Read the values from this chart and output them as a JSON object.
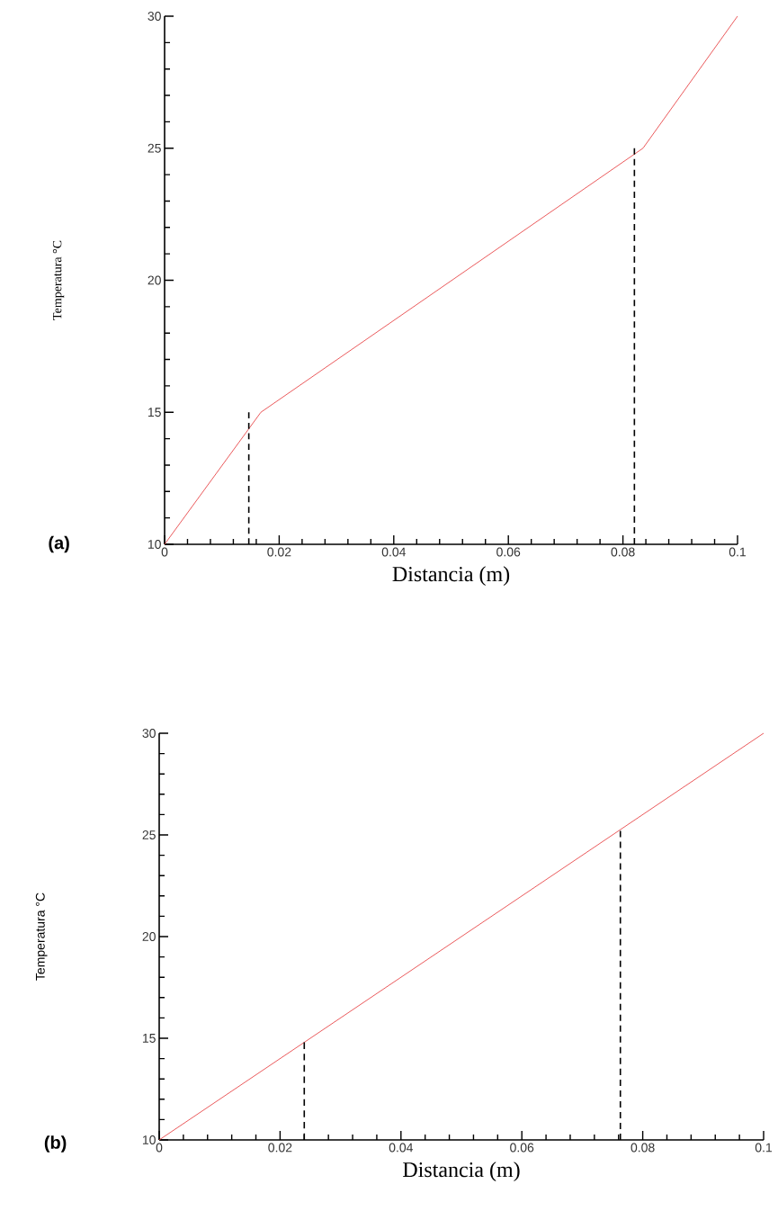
{
  "chart_data": [
    {
      "type": "line",
      "xlabel": "Distancia (m)",
      "ylabel": "Temperatura °C",
      "annotations": [
        "(a)"
      ],
      "xlim": [
        0,
        0.1
      ],
      "ylim": [
        10,
        30
      ],
      "xticks": [
        0,
        0.02,
        0.04,
        0.06,
        0.08,
        0.1
      ],
      "yticks": [
        10,
        15,
        20,
        25,
        30
      ],
      "grid": false,
      "series": [
        {
          "color": "#e8474a",
          "x": [
            0,
            0.0168,
            0.0835,
            0.1
          ],
          "values": [
            10,
            15,
            25,
            30
          ]
        },
        {
          "color": "#000000",
          "line_style": "dashed",
          "x": [
            0.0147,
            0.0147
          ],
          "values": [
            10,
            15
          ]
        },
        {
          "color": "#000000",
          "line_style": "dashed",
          "x": [
            0.082,
            0.082
          ],
          "values": [
            10,
            25
          ]
        }
      ]
    },
    {
      "type": "line",
      "xlabel": "Distancia (m)",
      "ylabel": "Temperatura °C",
      "annotations": [
        "(b)"
      ],
      "xlim": [
        0,
        0.1
      ],
      "ylim": [
        10,
        30
      ],
      "xticks": [
        0,
        0.02,
        0.04,
        0.06,
        0.08,
        0.1
      ],
      "yticks": [
        10,
        15,
        20,
        25,
        30
      ],
      "grid": false,
      "series": [
        {
          "color": "#e8474a",
          "x": [
            0,
            0.1
          ],
          "values": [
            10,
            30
          ]
        },
        {
          "color": "#000000",
          "line_style": "dashed",
          "x": [
            0.024,
            0.024
          ],
          "values": [
            10,
            14.8
          ]
        },
        {
          "color": "#000000",
          "line_style": "dashed",
          "x": [
            0.0763,
            0.0763
          ],
          "values": [
            10,
            25.2
          ]
        }
      ]
    }
  ]
}
